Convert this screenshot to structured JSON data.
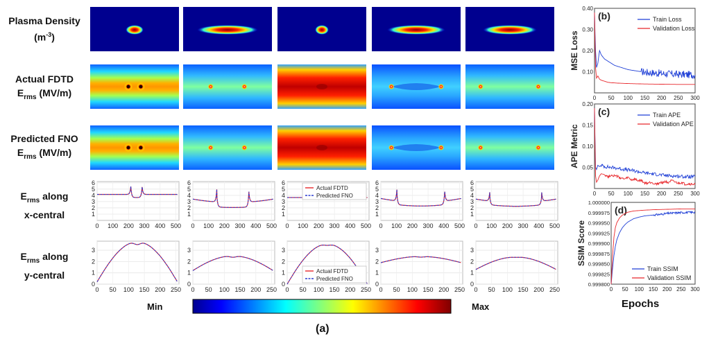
{
  "row_labels": {
    "plasma_density": {
      "line1": "Plasma Density",
      "line2": "(m",
      "sup": "-3",
      "line2_end": ")"
    },
    "actual": {
      "line1": "Actual FDTD",
      "main": "E",
      "sub": "rms",
      "rest": " (MV/m)"
    },
    "predicted": {
      "line1": "Predicted FNO",
      "main": "E",
      "sub": "rms",
      "rest": " (MV/m)"
    },
    "x_central": {
      "main": "E",
      "sub": "rms",
      "rest": " along",
      "line2": "x-central"
    },
    "y_central": {
      "main": "E",
      "sub": "rms",
      "rest": " along",
      "line2": "y-central"
    }
  },
  "colorbar": {
    "min_label": "Min",
    "max_label": "Max"
  },
  "caption_a": "(a)",
  "xlabel_epochs": "Epochs",
  "legend_small": {
    "actual": "Actual FDTD",
    "predicted": "Predicted FNO"
  },
  "colors": {
    "train": "#1f3fd6",
    "validation": "#e8262a",
    "actual": "#e8262a",
    "predicted": "#2a3bd0",
    "jet_dark": "#00008f"
  },
  "chart_data": [
    {
      "id": "b",
      "type": "line",
      "title": "(b)",
      "ylabel": "MSE Loss",
      "xlim": [
        0,
        300
      ],
      "ylim": [
        0,
        0.4
      ],
      "xticks": [
        "0",
        "50",
        "100",
        "150",
        "200",
        "250",
        "300"
      ],
      "yticks": [
        "0.10",
        "0.20",
        "0.30",
        "0.40"
      ],
      "ytick_values": [
        0.1,
        0.2,
        0.3,
        0.4
      ],
      "series": [
        {
          "name": "Train Loss",
          "x": [
            0,
            3,
            6,
            10,
            15,
            20,
            30,
            40,
            50,
            60,
            70,
            80,
            90,
            100,
            120,
            140,
            160,
            180,
            200,
            220,
            240,
            260,
            280,
            300
          ],
          "y": [
            0.38,
            0.2,
            0.12,
            0.14,
            0.2,
            0.18,
            0.16,
            0.15,
            0.14,
            0.13,
            0.125,
            0.12,
            0.115,
            0.11,
            0.105,
            0.1,
            0.097,
            0.094,
            0.092,
            0.09,
            0.088,
            0.087,
            0.086,
            0.085
          ],
          "noise_from": 140,
          "noise_amp": 0.018
        },
        {
          "name": "Validation Loss",
          "x": [
            0,
            3,
            6,
            10,
            15,
            20,
            30,
            40,
            50,
            70,
            100,
            150,
            200,
            250,
            300
          ],
          "y": [
            0.38,
            0.12,
            0.07,
            0.08,
            0.065,
            0.06,
            0.055,
            0.05,
            0.048,
            0.046,
            0.044,
            0.042,
            0.041,
            0.04,
            0.04
          ]
        }
      ]
    },
    {
      "id": "c",
      "type": "line",
      "title": "(c)",
      "ylabel": "APE Metric",
      "xlim": [
        0,
        300
      ],
      "ylim": [
        0,
        0.2
      ],
      "xticks": [
        "0",
        "50",
        "100",
        "150",
        "200",
        "250",
        "300"
      ],
      "yticks": [
        "0.05",
        "0.10",
        "0.15",
        "0.20"
      ],
      "ytick_values": [
        0.05,
        0.1,
        0.15,
        0.2
      ],
      "series": [
        {
          "name": "Train APE",
          "x": [
            0,
            3,
            6,
            10,
            15,
            20,
            30,
            50,
            70,
            90,
            110,
            130,
            150,
            170,
            190,
            210,
            230,
            250,
            270,
            300
          ],
          "y": [
            0.19,
            0.05,
            0.045,
            0.055,
            0.052,
            0.055,
            0.052,
            0.05,
            0.048,
            0.045,
            0.043,
            0.04,
            0.037,
            0.035,
            0.033,
            0.031,
            0.03,
            0.029,
            0.028,
            0.028
          ],
          "noise_from": 20,
          "noise_amp": 0.004
        },
        {
          "name": "Validation APE",
          "x": [
            0,
            3,
            6,
            10,
            15,
            20,
            30,
            40,
            50,
            60,
            70,
            80,
            90,
            100,
            110,
            120,
            130,
            140,
            150,
            160,
            170,
            180,
            190,
            200,
            210,
            220,
            230,
            240,
            250,
            260,
            270,
            280,
            290,
            300
          ],
          "y": [
            0.19,
            0.03,
            0.015,
            0.02,
            0.03,
            0.035,
            0.033,
            0.028,
            0.032,
            0.03,
            0.028,
            0.024,
            0.022,
            0.026,
            0.02,
            0.022,
            0.018,
            0.019,
            0.012,
            0.013,
            0.015,
            0.011,
            0.012,
            0.014,
            0.016,
            0.015,
            0.018,
            0.015,
            0.012,
            0.014,
            0.01,
            0.011,
            0.01,
            0.01
          ],
          "noise_from": 30,
          "noise_amp": 0.003
        }
      ]
    },
    {
      "id": "d",
      "type": "line",
      "title": "(d)",
      "ylabel": "SSIM Score",
      "xlim": [
        0,
        300
      ],
      "ylim": [
        0.9998,
        1.0
      ],
      "xticks": [
        "0",
        "50",
        "100",
        "150",
        "200",
        "250",
        "300"
      ],
      "yticks": [
        "0.999800",
        "0.999825",
        "0.999850",
        "0.999875",
        "0.999900",
        "0.999925",
        "0.999950",
        "0.999975",
        "1.000000"
      ],
      "ytick_values": [
        0.9998,
        0.999825,
        0.99985,
        0.999875,
        0.9999,
        0.999925,
        0.99995,
        0.999975,
        1.0
      ],
      "series": [
        {
          "name": "Train SSIM",
          "x": [
            0,
            5,
            10,
            15,
            20,
            30,
            40,
            50,
            60,
            80,
            100,
            120,
            150,
            180,
            200,
            250,
            300
          ],
          "y": [
            0.9998,
            0.999838,
            0.99987,
            0.999892,
            0.999908,
            0.999926,
            0.999938,
            0.999946,
            0.999952,
            0.99996,
            0.999964,
            0.999967,
            0.999969,
            0.999971,
            0.999973,
            0.999975,
            0.999976
          ],
          "noise_from": 150,
          "noise_amp": 2.5e-06
        },
        {
          "name": "Validation SSIM",
          "x": [
            0,
            5,
            10,
            15,
            20,
            30,
            40,
            50,
            60,
            80,
            100,
            120,
            150,
            200,
            250,
            300
          ],
          "y": [
            0.9998,
            0.99987,
            0.999915,
            0.999938,
            0.99995,
            0.999962,
            0.999969,
            0.999973,
            0.999976,
            0.999979,
            0.99998,
            0.999981,
            0.999982,
            0.999983,
            0.999984,
            0.999984
          ]
        }
      ]
    },
    {
      "id": "xprofiles",
      "type": "line",
      "title": "Erms along x-central",
      "xlim": [
        0,
        520
      ],
      "ylim": [
        0,
        6.2
      ],
      "xticks": [
        "0",
        "100",
        "200",
        "300",
        "400",
        "500"
      ],
      "yticks": [
        "1",
        "2",
        "3",
        "4",
        "5",
        "6"
      ],
      "profiles": [
        {
          "base": 4.15,
          "peaks": [
            [
              215,
              5.7
            ],
            [
              285,
              5.6
            ]
          ],
          "dip": 0.5,
          "curve": 0
        },
        {
          "base": 3.4,
          "peaks": [
            [
              152,
              5.4
            ],
            [
              355,
              5.4
            ]
          ],
          "dip": 0.8,
          "curve": -0.9
        },
        {
          "base": 3.65,
          "peaks": [
            [
              272,
              3.9
            ]
          ],
          "dip": 0.3,
          "curve": 0
        },
        {
          "base": 3.5,
          "peaks": [
            [
              102,
              5.3
            ],
            [
              405,
              5.3
            ]
          ],
          "dip": 0.6,
          "curve": -1.0
        },
        {
          "base": 3.4,
          "peaks": [
            [
              88,
              4.8
            ],
            [
              418,
              4.8
            ]
          ],
          "dip": 0.6,
          "curve": -0.9
        }
      ]
    },
    {
      "id": "yprofiles",
      "type": "line",
      "title": "Erms along y-central",
      "xlim": [
        0,
        260
      ],
      "ylim": [
        0,
        3.8
      ],
      "xticks": [
        "0",
        "50",
        "100",
        "150",
        "200",
        "250"
      ],
      "yticks": [
        "0",
        "1",
        "2",
        "3"
      ],
      "profiles": [
        {
          "edge": 0.2,
          "center": 3.75,
          "notch": 0.25
        },
        {
          "edge": 1.2,
          "center": 2.5,
          "notch": 0.12
        },
        {
          "edge": 0.0,
          "center": 3.55,
          "notch": 0.12
        },
        {
          "edge": 1.9,
          "center": 2.45,
          "notch": 0.06
        },
        {
          "edge": 1.3,
          "center": 2.4,
          "notch": 0.03
        }
      ]
    }
  ]
}
